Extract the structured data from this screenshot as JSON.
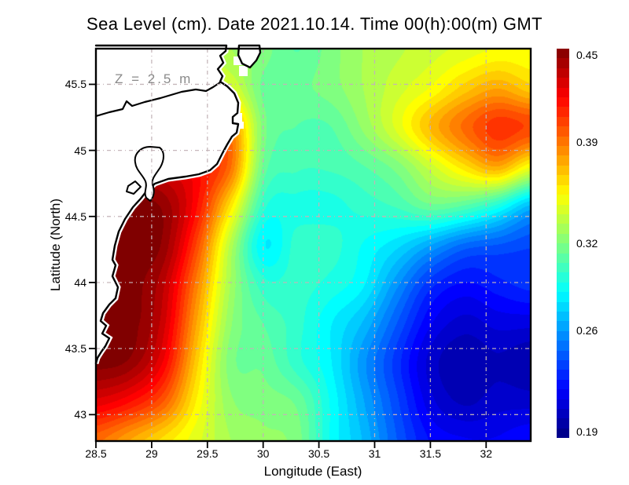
{
  "title": "Sea Level (cm). Date 2021.10.14. Time 00(h):00(m) GMT",
  "annotation": "Z = 2.5 m",
  "colors": {
    "background": "#ffffff",
    "land": "#ffffff",
    "coastline": "#000000",
    "gridline": "#c3b4b8",
    "annotation_text": "#8a8a8a",
    "colormap_low": "#000080",
    "colormap_high": "#800000"
  },
  "chart_data": {
    "type": "heatmap",
    "title": "Sea Level (cm). Date 2021.10.14. Time 00(h):00(m) GMT",
    "xlabel": "Longitude (East)",
    "ylabel": "Latitude (North)",
    "annotation": "Z = 2.5 m",
    "xlim": [
      28.5,
      32.4
    ],
    "ylim": [
      42.8,
      45.77
    ],
    "grid_on": true,
    "x_ticks": [
      "28.5",
      "29",
      "29.5",
      "30",
      "30.5",
      "31",
      "31.5",
      "32"
    ],
    "y_ticks": [
      "45.5",
      "45",
      "44.5",
      "44",
      "43.5",
      "43"
    ],
    "colorbar": {
      "position": "right",
      "colormap": "jet",
      "min": 0.19,
      "max": 0.45,
      "level_step": 0.0065,
      "ticks": [
        "0.45",
        "0.39",
        "0.32",
        "0.26",
        "0.19"
      ]
    },
    "grid": {
      "lon": [
        28.5,
        28.8,
        29.1,
        29.4,
        29.7,
        30.0,
        30.3,
        30.6,
        30.9,
        31.2,
        31.5,
        31.8,
        32.1,
        32.4
      ],
      "lat": [
        45.8,
        45.5,
        45.2,
        44.9,
        44.6,
        44.3,
        44.0,
        43.7,
        43.4,
        43.1,
        42.8
      ],
      "values": [
        [
          0.34,
          0.34,
          0.34,
          0.335,
          0.33,
          0.32,
          0.31,
          0.32,
          0.33,
          0.335,
          0.34,
          0.345,
          0.35,
          0.35
        ],
        [
          0.36,
          0.36,
          0.355,
          0.35,
          0.345,
          0.315,
          0.315,
          0.32,
          0.33,
          0.34,
          0.35,
          0.365,
          0.375,
          0.365
        ],
        [
          0.4,
          0.4,
          0.4,
          0.39,
          0.385,
          0.32,
          0.31,
          0.31,
          0.325,
          0.345,
          0.37,
          0.39,
          0.405,
          0.4
        ],
        [
          0.43,
          0.43,
          0.425,
          0.415,
          0.39,
          0.315,
          0.305,
          0.305,
          0.31,
          0.32,
          0.34,
          0.36,
          0.375,
          0.35
        ],
        [
          0.45,
          0.45,
          0.445,
          0.415,
          0.36,
          0.3,
          0.295,
          0.295,
          0.3,
          0.305,
          0.315,
          0.31,
          0.295,
          0.27
        ],
        [
          0.45,
          0.45,
          0.445,
          0.4,
          0.335,
          0.285,
          0.3,
          0.3,
          0.29,
          0.28,
          0.265,
          0.25,
          0.245,
          0.24
        ],
        [
          0.45,
          0.45,
          0.435,
          0.385,
          0.33,
          0.3,
          0.3,
          0.295,
          0.285,
          0.26,
          0.235,
          0.225,
          0.23,
          0.235
        ],
        [
          0.45,
          0.45,
          0.43,
          0.375,
          0.325,
          0.31,
          0.3,
          0.285,
          0.27,
          0.245,
          0.22,
          0.21,
          0.215,
          0.215
        ],
        [
          0.45,
          0.445,
          0.42,
          0.365,
          0.32,
          0.315,
          0.3,
          0.285,
          0.26,
          0.235,
          0.21,
          0.2,
          0.205,
          0.2
        ],
        [
          0.425,
          0.415,
          0.395,
          0.355,
          0.325,
          0.32,
          0.315,
          0.29,
          0.265,
          0.24,
          0.215,
          0.205,
          0.21,
          0.21
        ],
        [
          0.39,
          0.375,
          0.36,
          0.345,
          0.33,
          0.325,
          0.32,
          0.29,
          0.27,
          0.245,
          0.225,
          0.22,
          0.22,
          0.225
        ]
      ]
    }
  }
}
